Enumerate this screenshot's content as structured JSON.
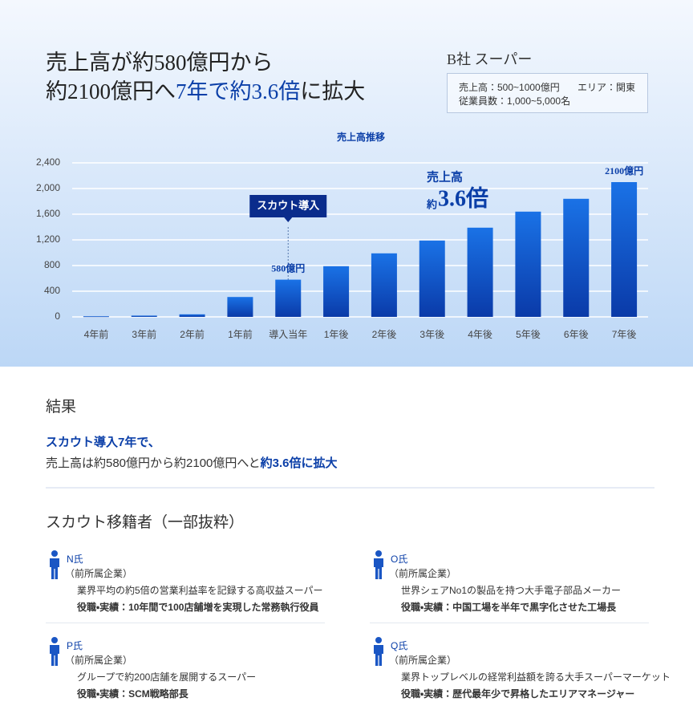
{
  "header": {
    "title_line1": "売上高が約580億円から",
    "title_line2_a": "約2100億円へ",
    "title_line2_highlight": "7年で約3.6倍",
    "title_line2_b": "に拡大"
  },
  "company": {
    "name": "B社 スーパー",
    "sales": "売上高：500~1000億円",
    "area": "エリア：関東",
    "employees": "従業員数：1,000~5,000名"
  },
  "chart_data": {
    "type": "bar",
    "title": "売上高推移",
    "categories": [
      "4年前",
      "3年前",
      "2年前",
      "1年前",
      "導入当年",
      "1年後",
      "2年後",
      "3年後",
      "4年後",
      "5年後",
      "6年後",
      "7年後"
    ],
    "values": [
      10,
      20,
      40,
      310,
      580,
      790,
      990,
      1190,
      1390,
      1640,
      1840,
      2100
    ],
    "value_labels": [
      null,
      null,
      null,
      null,
      "580億円",
      null,
      null,
      null,
      null,
      null,
      null,
      "2100億円"
    ],
    "color": "#0b55cf",
    "ylim": [
      0,
      2400
    ],
    "yticks": [
      0,
      400,
      800,
      {
        "value": 1200,
        "label": "1,200"
      },
      {
        "value": 1600,
        "label": "1,600"
      },
      {
        "value": 2000,
        "label": "2,000"
      },
      {
        "value": 2400,
        "label": "2,400"
      }
    ],
    "grid": true,
    "annotations": {
      "event": "スカウト導入",
      "growth_label": "売上高",
      "growth_prefix": "約",
      "growth_value": "3.6倍"
    }
  },
  "result": {
    "heading": "結果",
    "line1": "スカウト導入7年で、",
    "line2_a": "売上高は約580億円から約2100億円へと",
    "line2_highlight": "約3.6倍に拡大"
  },
  "transfers": {
    "heading": "スカウト移籍者（一部抜粋）",
    "people": [
      {
        "name": "N氏",
        "prev_label": "（前所属企業）",
        "company": "業界平均の約5倍の営業利益率を記録する高収益スーパー",
        "role": "役職・実績：10年間で100店舗増を実現した常務執行役員"
      },
      {
        "name": "O氏",
        "prev_label": "（前所属企業）",
        "company": "世界シェアNo1の製品を持つ大手電子部品メーカー",
        "role": "役職・実績：中国工場を半年で黒字化させた工場長"
      },
      {
        "name": "P氏",
        "prev_label": "（前所属企業）",
        "company": "グループで約200店舗を展開するスーパー",
        "role": "役職・実績：SCM戦略部長"
      },
      {
        "name": "Q氏",
        "prev_label": "（前所属企業）",
        "company": "業界トップレベルの経常利益額を誇る大手スーパーマーケット",
        "role": "役職・実績：歴代最年少で昇格したエリアマネージャー"
      }
    ]
  }
}
